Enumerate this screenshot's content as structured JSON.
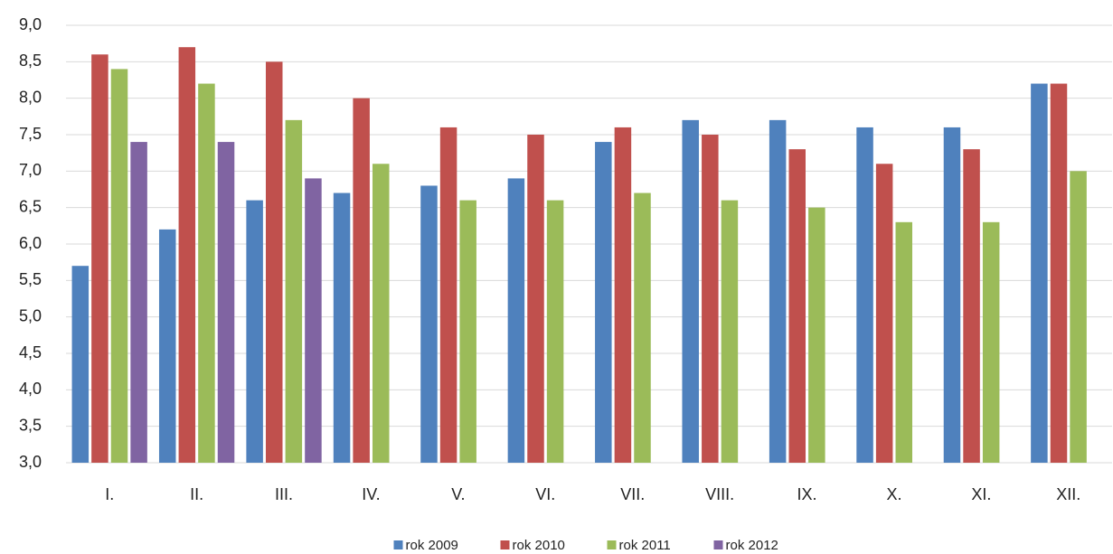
{
  "chart_data": {
    "type": "bar",
    "categories": [
      "I.",
      "II.",
      "III.",
      "IV.",
      "V.",
      "VI.",
      "VII.",
      "VIII.",
      "IX.",
      "X.",
      "XI.",
      "XII."
    ],
    "series": [
      {
        "name": "rok 2009",
        "color": "#4f81bd",
        "values": [
          5.7,
          6.2,
          6.6,
          6.7,
          6.8,
          6.9,
          7.4,
          7.7,
          7.7,
          7.6,
          7.6,
          8.2
        ]
      },
      {
        "name": "rok 2010",
        "color": "#c0504d",
        "values": [
          8.6,
          8.7,
          8.5,
          8.0,
          7.6,
          7.5,
          7.6,
          7.5,
          7.3,
          7.1,
          7.3,
          8.2
        ]
      },
      {
        "name": "rok 2011",
        "color": "#9bbb59",
        "values": [
          8.4,
          8.2,
          7.7,
          7.1,
          6.6,
          6.6,
          6.7,
          6.6,
          6.5,
          6.3,
          6.3,
          7.0
        ]
      },
      {
        "name": "rok 2012",
        "color": "#8064a2",
        "values": [
          7.4,
          7.4,
          6.9,
          null,
          null,
          null,
          null,
          null,
          null,
          null,
          null,
          null
        ]
      }
    ],
    "ylim": [
      3,
      9
    ],
    "yticks": [
      {
        "value": 3,
        "label": "3,0"
      },
      {
        "value": 3.5,
        "label": "3,5"
      },
      {
        "value": 4,
        "label": "4,0"
      },
      {
        "value": 4.5,
        "label": "4,5"
      },
      {
        "value": 5,
        "label": "5,0"
      },
      {
        "value": 5.5,
        "label": "5,5"
      },
      {
        "value": 6,
        "label": "6,0"
      },
      {
        "value": 6.5,
        "label": "6,5"
      },
      {
        "value": 7,
        "label": "7,0"
      },
      {
        "value": 7.5,
        "label": "7,5"
      },
      {
        "value": 8,
        "label": "8,0"
      },
      {
        "value": 8.5,
        "label": "8,5"
      },
      {
        "value": 9,
        "label": "9,0"
      }
    ],
    "grid": true,
    "legend": "bottom"
  }
}
